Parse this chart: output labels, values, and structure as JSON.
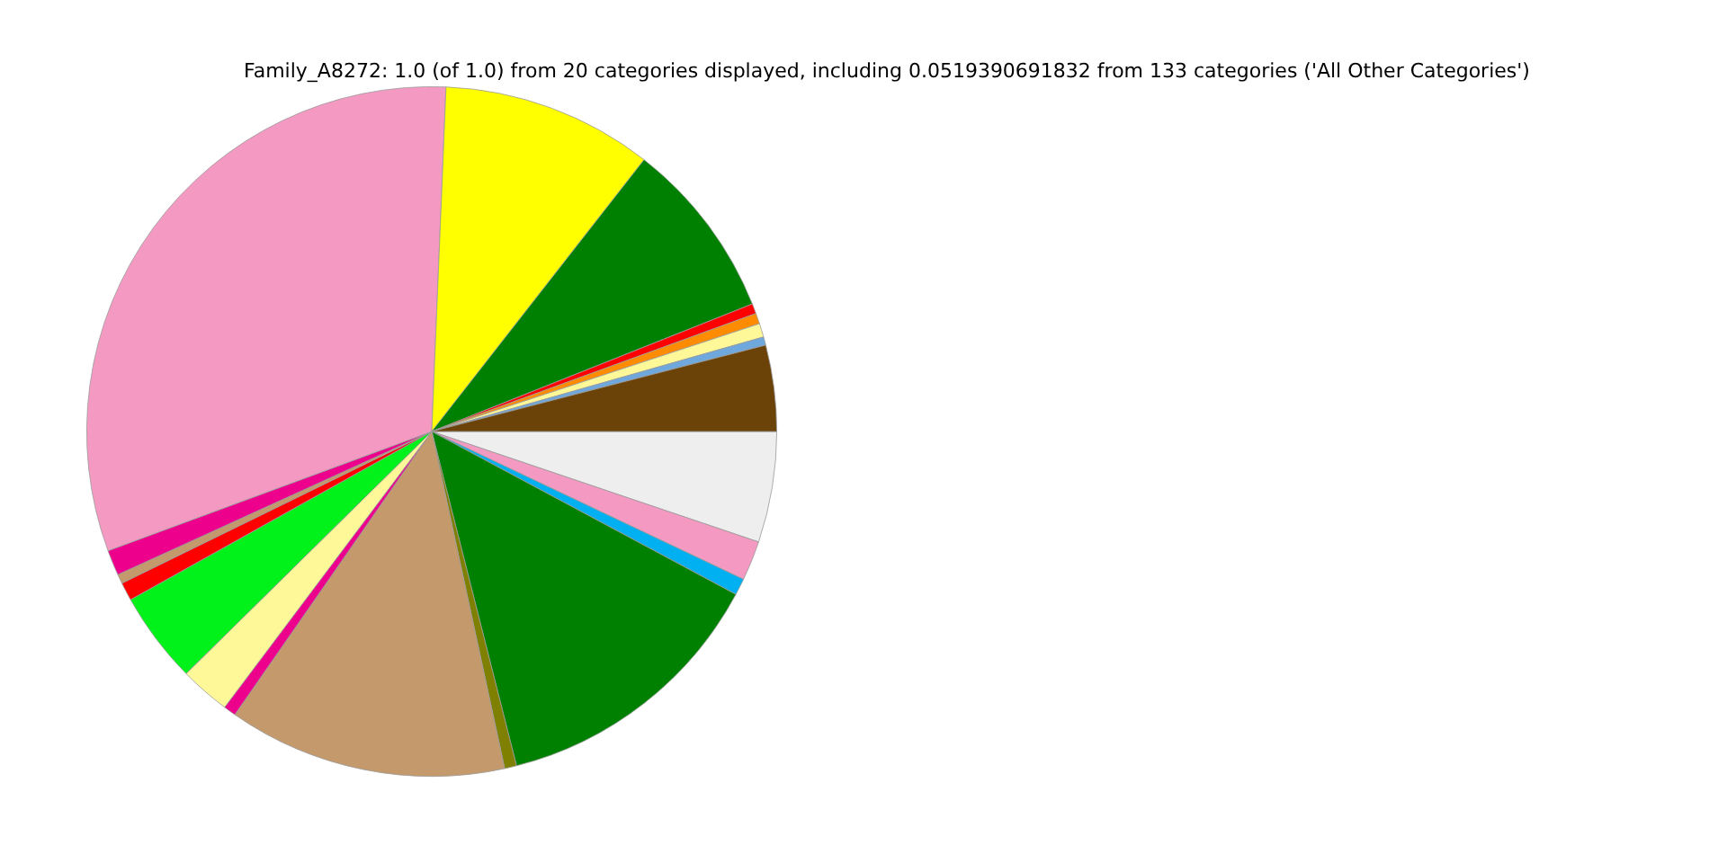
{
  "chart_data": {
    "type": "pie",
    "title": "Family_A8272: 1.0 (of 1.0) from 20 categories displayed, including 0.0519390691832 from 133 categories ('All Other Categories')",
    "categories": [
      null,
      null,
      null,
      null,
      null,
      null,
      null,
      null,
      null,
      null,
      null,
      null,
      null,
      null,
      null,
      null,
      null,
      null,
      null,
      null
    ],
    "values": [
      5.19,
      1.86,
      0.78,
      13.22,
      0.56,
      13.06,
      0.58,
      2.36,
      4.28,
      0.86,
      0.44,
      1.19,
      31.28,
      9.89,
      8.42,
      0.47,
      0.5,
      0.64,
      0.39,
      4.03
    ],
    "colors": [
      "#eeeeee",
      "#f49ac2",
      "#00b0f0",
      "#008000",
      "#808000",
      "#c49a6c",
      "#ec008c",
      "#fff899",
      "#00f21a",
      "#ff0000",
      "#c49a6c",
      "#ec008c",
      "#f49ac2",
      "#ffff00",
      "#008000",
      "#ff0000",
      "#ff8c00",
      "#fff899",
      "#6fa8dc",
      "#6b4309"
    ],
    "legend": false
  }
}
